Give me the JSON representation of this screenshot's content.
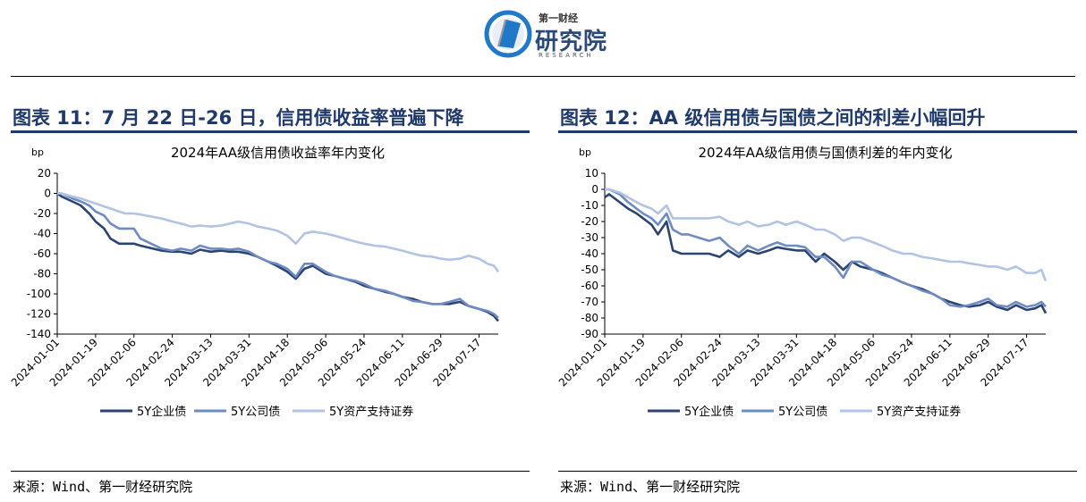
{
  "header": {
    "logo_top": "第一财经",
    "logo_main": "研究院",
    "logo_sub": "RESEARCH"
  },
  "figures": [
    {
      "title": "图表 11：7 月 22 日-26 日，信用债收益率普遍下降",
      "source": "来源：Wind、第一财经研究院"
    },
    {
      "title": "图表 12：AA 级信用债与国债之间的利差小幅回升",
      "source": "来源：Wind、第一财经研究院"
    }
  ],
  "chart_data": [
    {
      "type": "line",
      "title": "2024年AA级信用债收益率年内变化",
      "ylabel": "bp",
      "ylim": [
        -140,
        20
      ],
      "yticks": [
        20,
        0,
        -20,
        -40,
        -60,
        -80,
        -100,
        -120,
        -140
      ],
      "x_ticks": [
        "2024-01-01",
        "2024-01-19",
        "2024-02-06",
        "2024-02-24",
        "2024-03-13",
        "2024-03-31",
        "2024-04-18",
        "2024-05-06",
        "2024-05-24",
        "2024-06-11",
        "2024-06-29",
        "2024-07-17"
      ],
      "x_range": [
        "2024-01-01",
        "2024-07-26"
      ],
      "legend_position": "bottom",
      "colors": [
        "#2b4470",
        "#6e8bc4",
        "#b3c3e3"
      ],
      "series": [
        {
          "name": "5Y企业债",
          "x": [
            "2024-01-01",
            "2024-01-03",
            "2024-01-08",
            "2024-01-12",
            "2024-01-16",
            "2024-01-19",
            "2024-01-23",
            "2024-01-26",
            "2024-01-30",
            "2024-02-02",
            "2024-02-06",
            "2024-02-09",
            "2024-02-19",
            "2024-02-24",
            "2024-02-28",
            "2024-03-04",
            "2024-03-08",
            "2024-03-13",
            "2024-03-18",
            "2024-03-22",
            "2024-03-26",
            "2024-03-31",
            "2024-04-04",
            "2024-04-09",
            "2024-04-13",
            "2024-04-18",
            "2024-04-22",
            "2024-04-26",
            "2024-04-30",
            "2024-05-06",
            "2024-05-10",
            "2024-05-15",
            "2024-05-20",
            "2024-05-24",
            "2024-05-29",
            "2024-06-03",
            "2024-06-07",
            "2024-06-11",
            "2024-06-16",
            "2024-06-20",
            "2024-06-25",
            "2024-06-29",
            "2024-07-03",
            "2024-07-08",
            "2024-07-12",
            "2024-07-17",
            "2024-07-21",
            "2024-07-24",
            "2024-07-26"
          ],
          "values": [
            0,
            -3,
            -8,
            -12,
            -20,
            -28,
            -35,
            -45,
            -50,
            -50,
            -50,
            -52,
            -57,
            -58,
            -58,
            -60,
            -56,
            -58,
            -57,
            -58,
            -58,
            -60,
            -63,
            -68,
            -72,
            -78,
            -85,
            -75,
            -72,
            -80,
            -82,
            -85,
            -88,
            -92,
            -95,
            -98,
            -100,
            -103,
            -105,
            -108,
            -110,
            -110,
            -110,
            -108,
            -112,
            -115,
            -118,
            -122,
            -127
          ]
        },
        {
          "name": "5Y公司债",
          "x": [
            "2024-01-01",
            "2024-01-03",
            "2024-01-08",
            "2024-01-12",
            "2024-01-16",
            "2024-01-19",
            "2024-01-23",
            "2024-01-26",
            "2024-01-30",
            "2024-02-02",
            "2024-02-06",
            "2024-02-09",
            "2024-02-19",
            "2024-02-24",
            "2024-02-28",
            "2024-03-04",
            "2024-03-08",
            "2024-03-13",
            "2024-03-18",
            "2024-03-22",
            "2024-03-26",
            "2024-03-31",
            "2024-04-04",
            "2024-04-09",
            "2024-04-13",
            "2024-04-18",
            "2024-04-22",
            "2024-04-26",
            "2024-04-30",
            "2024-05-06",
            "2024-05-10",
            "2024-05-15",
            "2024-05-20",
            "2024-05-24",
            "2024-05-29",
            "2024-06-03",
            "2024-06-07",
            "2024-06-11",
            "2024-06-16",
            "2024-06-20",
            "2024-06-25",
            "2024-06-29",
            "2024-07-03",
            "2024-07-08",
            "2024-07-12",
            "2024-07-17",
            "2024-07-21",
            "2024-07-24",
            "2024-07-26"
          ],
          "values": [
            0,
            0,
            -5,
            -8,
            -12,
            -18,
            -22,
            -30,
            -35,
            -35,
            -35,
            -45,
            -55,
            -57,
            -55,
            -57,
            -52,
            -55,
            -55,
            -56,
            -55,
            -58,
            -63,
            -68,
            -70,
            -75,
            -83,
            -70,
            -70,
            -78,
            -82,
            -85,
            -87,
            -90,
            -95,
            -97,
            -100,
            -103,
            -107,
            -108,
            -110,
            -110,
            -108,
            -105,
            -112,
            -115,
            -117,
            -120,
            -124
          ]
        },
        {
          "name": "5Y资产支持证券",
          "x": [
            "2024-01-01",
            "2024-01-03",
            "2024-01-08",
            "2024-01-12",
            "2024-01-16",
            "2024-01-19",
            "2024-01-23",
            "2024-01-26",
            "2024-01-30",
            "2024-02-02",
            "2024-02-06",
            "2024-02-09",
            "2024-02-19",
            "2024-02-24",
            "2024-02-28",
            "2024-03-04",
            "2024-03-08",
            "2024-03-13",
            "2024-03-18",
            "2024-03-22",
            "2024-03-26",
            "2024-03-31",
            "2024-04-04",
            "2024-04-09",
            "2024-04-13",
            "2024-04-18",
            "2024-04-22",
            "2024-04-26",
            "2024-04-30",
            "2024-05-06",
            "2024-05-10",
            "2024-05-15",
            "2024-05-20",
            "2024-05-24",
            "2024-05-29",
            "2024-06-03",
            "2024-06-07",
            "2024-06-11",
            "2024-06-16",
            "2024-06-20",
            "2024-06-25",
            "2024-06-29",
            "2024-07-03",
            "2024-07-08",
            "2024-07-12",
            "2024-07-17",
            "2024-07-21",
            "2024-07-24",
            "2024-07-26"
          ],
          "values": [
            0,
            0,
            -3,
            -5,
            -8,
            -10,
            -13,
            -15,
            -18,
            -20,
            -20,
            -21,
            -25,
            -28,
            -30,
            -33,
            -32,
            -33,
            -32,
            -30,
            -28,
            -30,
            -33,
            -35,
            -37,
            -42,
            -50,
            -40,
            -38,
            -40,
            -42,
            -45,
            -48,
            -50,
            -52,
            -53,
            -55,
            -57,
            -60,
            -62,
            -63,
            -65,
            -66,
            -65,
            -62,
            -65,
            -70,
            -72,
            -78
          ]
        }
      ]
    },
    {
      "type": "line",
      "title": "2024年AA级信用债与国债利差的年内变化",
      "ylabel": "bp",
      "ylim": [
        -90,
        10
      ],
      "yticks": [
        10,
        0,
        -10,
        -20,
        -30,
        -40,
        -50,
        -60,
        -70,
        -80,
        -90
      ],
      "x_ticks": [
        "2024-01-01",
        "2024-01-19",
        "2024-02-06",
        "2024-02-24",
        "2024-03-13",
        "2024-03-31",
        "2024-04-18",
        "2024-05-06",
        "2024-05-24",
        "2024-06-11",
        "2024-06-29",
        "2024-07-17"
      ],
      "x_range": [
        "2024-01-01",
        "2024-07-26"
      ],
      "legend_position": "bottom",
      "colors": [
        "#2b4470",
        "#6e8bc4",
        "#b3c3e3"
      ],
      "series": [
        {
          "name": "5Y企业债",
          "x": [
            "2024-01-01",
            "2024-01-03",
            "2024-01-08",
            "2024-01-12",
            "2024-01-16",
            "2024-01-19",
            "2024-01-23",
            "2024-01-26",
            "2024-01-30",
            "2024-02-02",
            "2024-02-06",
            "2024-02-09",
            "2024-02-19",
            "2024-02-24",
            "2024-02-28",
            "2024-03-04",
            "2024-03-08",
            "2024-03-13",
            "2024-03-18",
            "2024-03-22",
            "2024-03-26",
            "2024-03-31",
            "2024-04-04",
            "2024-04-09",
            "2024-04-13",
            "2024-04-18",
            "2024-04-22",
            "2024-04-26",
            "2024-04-30",
            "2024-05-06",
            "2024-05-10",
            "2024-05-15",
            "2024-05-20",
            "2024-05-24",
            "2024-05-29",
            "2024-06-03",
            "2024-06-07",
            "2024-06-11",
            "2024-06-16",
            "2024-06-20",
            "2024-06-25",
            "2024-06-29",
            "2024-07-03",
            "2024-07-08",
            "2024-07-12",
            "2024-07-17",
            "2024-07-21",
            "2024-07-24",
            "2024-07-26"
          ],
          "values": [
            -5,
            -3,
            -8,
            -12,
            -15,
            -18,
            -22,
            -28,
            -20,
            -38,
            -40,
            -40,
            -40,
            -42,
            -38,
            -42,
            -38,
            -40,
            -38,
            -36,
            -37,
            -38,
            -38,
            -45,
            -40,
            -45,
            -50,
            -45,
            -48,
            -50,
            -52,
            -55,
            -58,
            -60,
            -62,
            -65,
            -68,
            -70,
            -72,
            -73,
            -72,
            -70,
            -73,
            -75,
            -72,
            -75,
            -74,
            -72,
            -77
          ]
        },
        {
          "name": "5Y公司债",
          "x": [
            "2024-01-01",
            "2024-01-03",
            "2024-01-08",
            "2024-01-12",
            "2024-01-16",
            "2024-01-19",
            "2024-01-23",
            "2024-01-26",
            "2024-01-30",
            "2024-02-02",
            "2024-02-06",
            "2024-02-09",
            "2024-02-19",
            "2024-02-24",
            "2024-02-28",
            "2024-03-04",
            "2024-03-08",
            "2024-03-13",
            "2024-03-18",
            "2024-03-22",
            "2024-03-26",
            "2024-03-31",
            "2024-04-04",
            "2024-04-09",
            "2024-04-13",
            "2024-04-18",
            "2024-04-22",
            "2024-04-26",
            "2024-04-30",
            "2024-05-06",
            "2024-05-10",
            "2024-05-15",
            "2024-05-20",
            "2024-05-24",
            "2024-05-29",
            "2024-06-03",
            "2024-06-07",
            "2024-06-11",
            "2024-06-16",
            "2024-06-20",
            "2024-06-25",
            "2024-06-29",
            "2024-07-03",
            "2024-07-08",
            "2024-07-12",
            "2024-07-17",
            "2024-07-21",
            "2024-07-24",
            "2024-07-26"
          ],
          "values": [
            0,
            0,
            -3,
            -8,
            -12,
            -15,
            -18,
            -22,
            -15,
            -25,
            -28,
            -28,
            -32,
            -30,
            -35,
            -40,
            -35,
            -38,
            -35,
            -33,
            -35,
            -35,
            -36,
            -42,
            -42,
            -48,
            -55,
            -45,
            -45,
            -50,
            -53,
            -55,
            -58,
            -60,
            -63,
            -65,
            -68,
            -72,
            -73,
            -72,
            -70,
            -68,
            -72,
            -73,
            -70,
            -73,
            -72,
            -70,
            -73
          ]
        },
        {
          "name": "5Y资产支持证券",
          "x": [
            "2024-01-01",
            "2024-01-03",
            "2024-01-08",
            "2024-01-12",
            "2024-01-16",
            "2024-01-19",
            "2024-01-23",
            "2024-01-26",
            "2024-01-30",
            "2024-02-02",
            "2024-02-06",
            "2024-02-09",
            "2024-02-19",
            "2024-02-24",
            "2024-02-28",
            "2024-03-04",
            "2024-03-08",
            "2024-03-13",
            "2024-03-18",
            "2024-03-22",
            "2024-03-26",
            "2024-03-31",
            "2024-04-04",
            "2024-04-09",
            "2024-04-13",
            "2024-04-18",
            "2024-04-22",
            "2024-04-26",
            "2024-04-30",
            "2024-05-06",
            "2024-05-10",
            "2024-05-15",
            "2024-05-20",
            "2024-05-24",
            "2024-05-29",
            "2024-06-03",
            "2024-06-07",
            "2024-06-11",
            "2024-06-16",
            "2024-06-20",
            "2024-06-25",
            "2024-06-29",
            "2024-07-03",
            "2024-07-08",
            "2024-07-12",
            "2024-07-17",
            "2024-07-21",
            "2024-07-24",
            "2024-07-26"
          ],
          "values": [
            0,
            0,
            -2,
            -5,
            -8,
            -10,
            -12,
            -15,
            -10,
            -18,
            -18,
            -18,
            -18,
            -17,
            -20,
            -22,
            -20,
            -23,
            -22,
            -20,
            -22,
            -20,
            -22,
            -25,
            -25,
            -28,
            -32,
            -30,
            -30,
            -33,
            -35,
            -38,
            -40,
            -40,
            -42,
            -43,
            -44,
            -45,
            -45,
            -46,
            -47,
            -48,
            -48,
            -50,
            -48,
            -52,
            -52,
            -50,
            -57
          ]
        }
      ]
    }
  ]
}
